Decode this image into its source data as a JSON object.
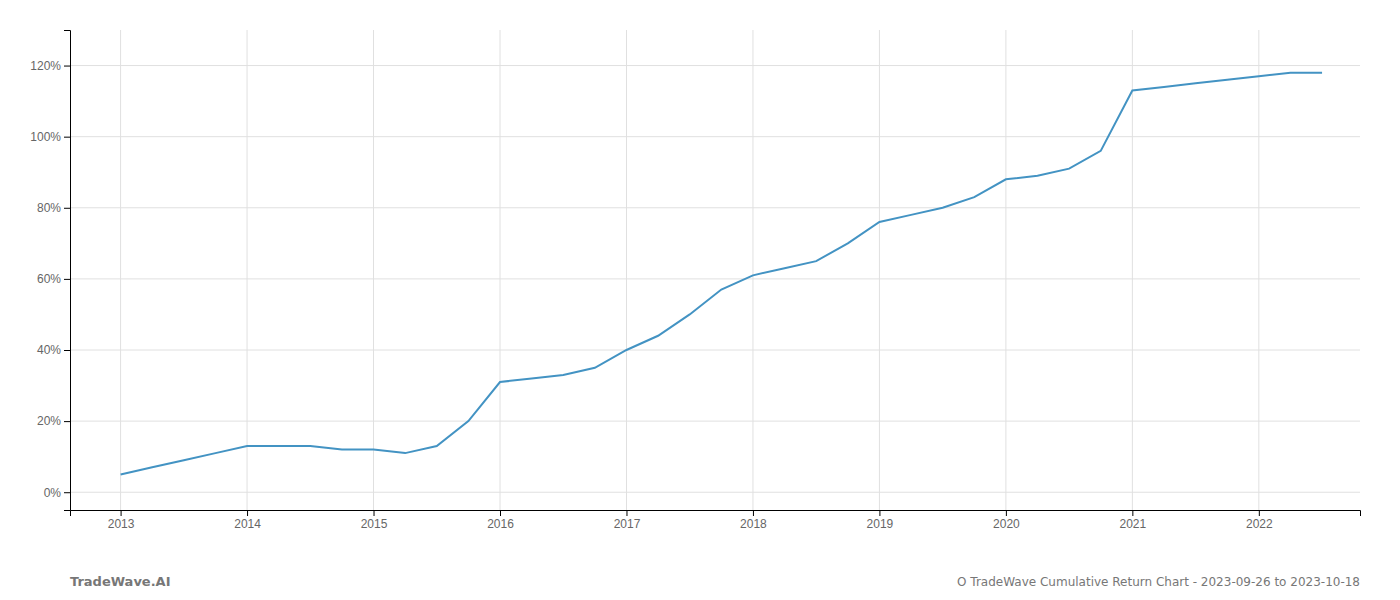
{
  "chart_data": {
    "type": "line",
    "title": "O TradeWave Cumulative Return Chart - 2023-09-26 to 2023-10-18",
    "annotations": [
      "TradeWave.AI"
    ],
    "color": "#4393c3",
    "grid": true,
    "x": [
      2013.0,
      2013.25,
      2013.5,
      2013.75,
      2014.0,
      2014.25,
      2014.5,
      2014.75,
      2015.0,
      2015.25,
      2015.5,
      2015.75,
      2016.0,
      2016.25,
      2016.5,
      2016.75,
      2017.0,
      2017.25,
      2017.5,
      2017.75,
      2018.0,
      2018.25,
      2018.5,
      2018.75,
      2019.0,
      2019.25,
      2019.5,
      2019.75,
      2020.0,
      2020.25,
      2020.5,
      2020.75,
      2021.0,
      2021.25,
      2021.5,
      2021.75,
      2022.0,
      2022.25,
      2022.5
    ],
    "values": [
      5,
      7,
      9,
      11,
      13,
      13,
      13,
      12,
      12,
      11,
      13,
      20,
      31,
      32,
      33,
      35,
      40,
      44,
      50,
      57,
      61,
      63,
      65,
      70,
      76,
      78,
      80,
      83,
      88,
      89,
      91,
      96,
      113,
      114,
      115,
      116,
      117,
      118,
      118
    ],
    "xlim": [
      2012.6,
      2022.8
    ],
    "xticks": [
      2013,
      2014,
      2015,
      2016,
      2017,
      2018,
      2019,
      2020,
      2021,
      2022
    ],
    "ylim": [
      -5,
      130
    ],
    "yticks": [
      {
        "value": 0,
        "label": "0%"
      },
      {
        "value": 20,
        "label": "20%"
      },
      {
        "value": 40,
        "label": "40%"
      },
      {
        "value": 60,
        "label": "60%"
      },
      {
        "value": 80,
        "label": "80%"
      },
      {
        "value": 100,
        "label": "100%"
      },
      {
        "value": 120,
        "label": "120%"
      }
    ]
  }
}
